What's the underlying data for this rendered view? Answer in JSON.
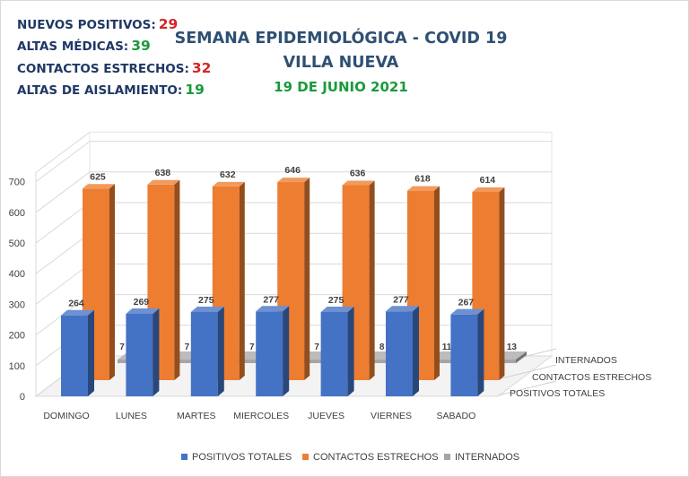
{
  "stats": [
    {
      "label": "NUEVOS POSITIVOS:",
      "value": "29",
      "color": "#d62424"
    },
    {
      "label": "ALTAS MÉDICAS:",
      "value": "39",
      "color": "#1a9a3c"
    },
    {
      "label": "CONTACTOS ESTRECHOS:",
      "value": "32",
      "color": "#d62424"
    },
    {
      "label": "ALTAS DE AISLAMIENTO:",
      "value": "19",
      "color": "#1a9a3c"
    }
  ],
  "header": {
    "title_line1": "SEMANA EPIDEMIOLÓGICA - COVID 19",
    "title_line2": "VILLA NUEVA",
    "date": "19 DE JUNIO 2021",
    "title_color": "#2e5073",
    "date_color": "#1a9a3c"
  },
  "chart_data": {
    "type": "bar",
    "style": "3d-clustered-depth",
    "categories": [
      "DOMINGO",
      "LUNES",
      "MARTES",
      "MIERCOLES",
      "JUEVES",
      "VIERNES",
      "SABADO"
    ],
    "series": [
      {
        "name": "POSITIVOS TOTALES",
        "values": [
          264,
          269,
          275,
          277,
          275,
          277,
          267
        ],
        "color": "#4472c4"
      },
      {
        "name": "CONTACTOS ESTRECHOS",
        "values": [
          625,
          638,
          632,
          646,
          636,
          618,
          614
        ],
        "color": "#ed7d31"
      },
      {
        "name": "INTERNADOS",
        "values": [
          7,
          7,
          7,
          7,
          8,
          11,
          13
        ],
        "color": "#a5a5a5"
      }
    ],
    "data_labels": {
      "POSITIVOS TOTALES": [
        "264",
        "269",
        "275",
        "277",
        "275",
        "277",
        "267"
      ],
      "CONTACTOS ESTRECHOS": [
        "625",
        "638",
        "632",
        "646",
        "636",
        "618",
        "614"
      ],
      "INTERNADOS": [
        "7",
        "7",
        "7",
        "7",
        "8",
        "11",
        "13"
      ]
    },
    "y_ticks": [
      0,
      100,
      200,
      300,
      400,
      500,
      600,
      700
    ],
    "ylim": [
      0,
      700
    ],
    "depth_axis_labels": [
      "INTERNADOS",
      "CONTACTOS ESTRECHOS",
      "POSITIVOS TOTALES"
    ],
    "grid": true,
    "legend_position": "bottom"
  }
}
